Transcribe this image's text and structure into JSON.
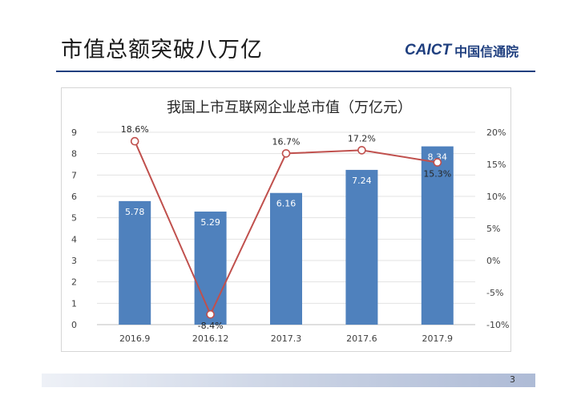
{
  "slide": {
    "title": "市值总额突破八万亿",
    "logo_mark": "CAICT",
    "logo_text": "中国信通院",
    "page_number": "3"
  },
  "colors": {
    "bar": "#4f81bd",
    "line": "#c0504d",
    "marker_fill": "#ffffff",
    "title_rule": "#1f3f7f"
  },
  "chart_data": {
    "type": "bar",
    "title": "我国上市互联网企业总市值（万亿元）",
    "categories": [
      "2016.9",
      "2016.12",
      "2017.3",
      "2017.6",
      "2017.9"
    ],
    "series": [
      {
        "type": "bar",
        "axis": "left",
        "values": [
          5.78,
          5.29,
          6.16,
          7.24,
          8.34
        ],
        "labels": [
          "5.78",
          "5.29",
          "6.16",
          "7.24",
          "8.34"
        ]
      },
      {
        "type": "line",
        "axis": "right",
        "values": [
          18.6,
          -8.4,
          16.7,
          17.2,
          15.3
        ],
        "labels": [
          "18.6%",
          "-8.4%",
          "16.7%",
          "17.2%",
          "15.3%"
        ]
      }
    ],
    "ylim": [
      0,
      9
    ],
    "y2lim": [
      -10,
      20
    ],
    "yticks": [
      "0",
      "1",
      "2",
      "3",
      "4",
      "5",
      "6",
      "7",
      "8",
      "9"
    ],
    "y2ticks": [
      "-10%",
      "-5%",
      "0%",
      "5%",
      "10%",
      "15%",
      "20%"
    ],
    "grid": true,
    "legend": "none"
  }
}
